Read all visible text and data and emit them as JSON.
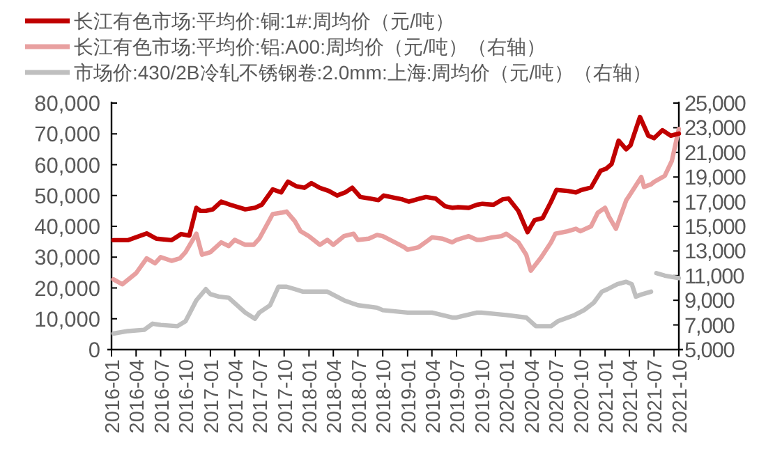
{
  "chart_data": {
    "type": "line",
    "legend": "top",
    "line_style": "solid",
    "xlim": [
      "2016-01",
      "2021-10"
    ],
    "xticks": [
      "2016-01",
      "2016-04",
      "2016-07",
      "2016-10",
      "2017-01",
      "2017-04",
      "2017-07",
      "2017-10",
      "2018-01",
      "2018-04",
      "2018-07",
      "2018-10",
      "2019-01",
      "2019-04",
      "2019-07",
      "2019-10",
      "2020-01",
      "2020-04",
      "2020-07",
      "2020-10",
      "2021-01",
      "2021-04",
      "2021-07",
      "2021-10"
    ],
    "ylim": [
      0,
      80000
    ],
    "yticks": [
      {
        "value": 0,
        "label": "0"
      },
      {
        "value": 10000,
        "label": "10,000"
      },
      {
        "value": 20000,
        "label": "20,000"
      },
      {
        "value": 30000,
        "label": "30,000"
      },
      {
        "value": 40000,
        "label": "40,000"
      },
      {
        "value": 50000,
        "label": "50,000"
      },
      {
        "value": 60000,
        "label": "60,000"
      },
      {
        "value": 70000,
        "label": "70,000"
      },
      {
        "value": 80000,
        "label": "80,000"
      }
    ],
    "y2lim": [
      5000,
      25000
    ],
    "y2ticks": [
      {
        "value": 5000,
        "label": "5,000"
      },
      {
        "value": 7000,
        "label": "7,000"
      },
      {
        "value": 9000,
        "label": "9,000"
      },
      {
        "value": 11000,
        "label": "11,000"
      },
      {
        "value": 13000,
        "label": "13,000"
      },
      {
        "value": 15000,
        "label": "15,000"
      },
      {
        "value": 17000,
        "label": "17,000"
      },
      {
        "value": 19000,
        "label": "19,000"
      },
      {
        "value": 21000,
        "label": "21,000"
      },
      {
        "value": 23000,
        "label": "23,000"
      },
      {
        "value": 25000,
        "label": "25,000"
      }
    ],
    "series": [
      {
        "name": "长江有色市场:平均价:铜:1#:周均价（元/吨）",
        "color": "#c00000",
        "x": [
          "2016-01-08",
          "2016-03-01",
          "2016-05-10",
          "2016-06-15",
          "2016-08-10",
          "2016-09-15",
          "2016-10-15",
          "2016-11-10",
          "2016-11-25",
          "2016-12-15",
          "2017-01-10",
          "2017-02-10",
          "2017-03-15",
          "2017-05-10",
          "2017-06-15",
          "2017-07-10",
          "2017-08-20",
          "2017-09-20",
          "2017-10-15",
          "2017-11-15",
          "2017-12-15",
          "2018-01-10",
          "2018-02-10",
          "2018-03-15",
          "2018-04-15",
          "2018-05-15",
          "2018-06-10",
          "2018-07-10",
          "2018-08-15",
          "2018-09-15",
          "2018-10-05",
          "2018-12-10",
          "2019-01-05",
          "2019-02-15",
          "2019-03-10",
          "2019-04-15",
          "2019-05-20",
          "2019-06-15",
          "2019-07-05",
          "2019-08-15",
          "2019-09-15",
          "2019-10-05",
          "2019-11-15",
          "2019-12-20",
          "2020-01-10",
          "2020-02-15",
          "2020-03-20",
          "2020-04-15",
          "2020-05-15",
          "2020-06-15",
          "2020-07-05",
          "2020-08-15",
          "2020-09-15",
          "2020-10-05",
          "2020-11-10",
          "2020-12-15",
          "2021-01-05",
          "2021-01-25",
          "2021-02-20",
          "2021-03-20",
          "2021-04-05",
          "2021-05-10",
          "2021-06-10",
          "2021-07-01",
          "2021-08-01",
          "2021-09-01",
          "2021-10-01"
        ],
        "values": [
          35500,
          35500,
          37700,
          36000,
          35500,
          37500,
          37000,
          46000,
          45000,
          45000,
          45500,
          48000,
          47000,
          45500,
          46000,
          47000,
          52000,
          51000,
          54500,
          53000,
          52500,
          54000,
          52500,
          51500,
          50000,
          51000,
          52500,
          49500,
          49000,
          48500,
          50000,
          48800,
          48000,
          49000,
          49500,
          49000,
          46500,
          46000,
          46200,
          46000,
          47000,
          47300,
          47000,
          48800,
          49000,
          45000,
          38100,
          42000,
          42700,
          48000,
          51800,
          51500,
          51000,
          51800,
          52600,
          58000,
          58700,
          60200,
          67800,
          65000,
          66300,
          75500,
          69400,
          68600,
          71200,
          69400,
          70100
        ]
      },
      {
        "name": "长江有色市场:平均价:铝:A00:周均价（元/吨）（右轴）",
        "color": "#e8a0a0",
        "axis": "y2",
        "x": [
          "2016-01-08",
          "2016-02-10",
          "2016-04-01",
          "2016-05-10",
          "2016-06-10",
          "2016-07-01",
          "2016-08-10",
          "2016-09-10",
          "2016-10-01",
          "2016-11-10",
          "2016-12-01",
          "2017-01-01",
          "2017-02-10",
          "2017-03-10",
          "2017-04-01",
          "2017-05-10",
          "2017-06-10",
          "2017-07-01",
          "2017-08-20",
          "2017-09-20",
          "2017-10-10",
          "2017-11-10",
          "2017-12-01",
          "2018-01-01",
          "2018-02-10",
          "2018-03-10",
          "2018-04-01",
          "2018-05-10",
          "2018-06-15",
          "2018-07-01",
          "2018-08-10",
          "2018-09-10",
          "2018-10-01",
          "2018-11-15",
          "2018-12-20",
          "2019-01-01",
          "2019-02-10",
          "2019-03-20",
          "2019-04-01",
          "2019-05-10",
          "2019-06-15",
          "2019-07-01",
          "2019-08-15",
          "2019-09-15",
          "2019-10-01",
          "2019-11-10",
          "2019-12-15",
          "2020-01-01",
          "2020-02-15",
          "2020-03-15",
          "2020-04-01",
          "2020-05-10",
          "2020-06-15",
          "2020-07-01",
          "2020-08-15",
          "2020-09-15",
          "2020-10-01",
          "2020-11-10",
          "2020-12-05",
          "2021-01-01",
          "2021-01-15",
          "2021-02-10",
          "2021-03-20",
          "2021-04-01",
          "2021-05-15",
          "2021-05-25",
          "2021-06-20",
          "2021-07-01",
          "2021-08-10",
          "2021-09-05",
          "2021-10-01"
        ],
        "values": [
          10700,
          10300,
          11200,
          12400,
          12000,
          12500,
          12200,
          12400,
          12900,
          14400,
          12700,
          12900,
          13700,
          13400,
          13900,
          13500,
          13500,
          14000,
          16000,
          16100,
          16200,
          15400,
          14600,
          14200,
          13500,
          13900,
          13500,
          14200,
          14400,
          13900,
          14000,
          14300,
          14200,
          13700,
          13300,
          13100,
          13300,
          13900,
          14100,
          14000,
          13700,
          13900,
          14200,
          13900,
          13900,
          14100,
          14200,
          14400,
          13700,
          12700,
          11400,
          12500,
          13700,
          14400,
          14600,
          14800,
          14600,
          15000,
          16100,
          16500,
          15800,
          14800,
          17100,
          17500,
          19000,
          18200,
          18400,
          18600,
          19100,
          20300,
          22900
        ]
      },
      {
        "name": "市场价:430/2B冷轧不锈钢卷:2.0mm:上海:周均价（元/吨）（右轴）",
        "color": "#bfbfbf",
        "axis": "y2",
        "x": [
          "2016-01-08",
          "2016-03-01",
          "2016-05-01",
          "2016-06-01",
          "2016-07-01",
          "2016-09-01",
          "2016-10-01",
          "2016-11-10",
          "2016-12-15",
          "2017-01-01",
          "2017-02-01",
          "2017-03-10",
          "2017-05-10",
          "2017-06-15",
          "2017-07-01",
          "2017-08-10",
          "2017-09-10",
          "2017-10-10",
          "2017-11-10",
          "2017-12-10",
          "2018-01-01",
          "2018-03-10",
          "2018-05-10",
          "2018-07-01",
          "2018-09-10",
          "2018-10-01",
          "2019-01-01",
          "2019-04-01",
          "2019-06-15",
          "2019-07-01",
          "2019-09-15",
          "2019-10-01",
          "2020-01-01",
          "2020-03-15",
          "2020-04-20",
          "2020-06-15",
          "2020-07-10",
          "2020-09-10",
          "2020-10-15",
          "2020-11-20",
          "2020-12-20",
          "2021-01-10",
          "2021-02-15",
          "2021-03-20",
          "2021-04-10",
          "2021-04-25",
          "2021-05-20",
          "2021-06-20",
          "2021-06-30",
          "2021-07-10",
          "2021-08-10",
          "2021-10-01"
        ],
        "values": [
          6300,
          6500,
          6600,
          7100,
          7000,
          6900,
          7300,
          9000,
          9900,
          9500,
          9300,
          9200,
          8000,
          7500,
          8000,
          8600,
          10100,
          10100,
          9900,
          9700,
          9700,
          9700,
          9000,
          8600,
          8400,
          8200,
          8000,
          8000,
          7600,
          7600,
          8000,
          8000,
          7800,
          7600,
          6900,
          6900,
          7300,
          7800,
          8200,
          8800,
          9700,
          9900,
          10300,
          10500,
          10300,
          9300,
          9500,
          9700,
          null,
          11200,
          11000,
          10800
        ]
      }
    ]
  }
}
